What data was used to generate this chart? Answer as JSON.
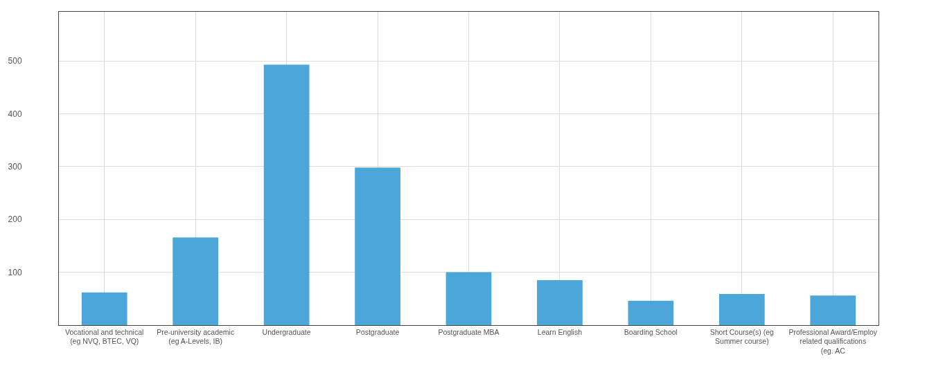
{
  "chart_data": {
    "type": "bar",
    "categories": [
      "Vocational and technical (eg NVQ, BTEC, VQ)",
      "Pre-university academic (eg A-Levels, IB)",
      "Undergraduate",
      "Postgraduate",
      "Postgraduate MBA",
      "Learn English",
      "Boarding School",
      "Short Course(s) (eg Summer course)",
      "Professional Award/Employ related qualifications (eg. AC"
    ],
    "values": [
      62,
      166,
      493,
      298,
      100,
      85,
      46,
      59,
      56
    ],
    "color": "#4ba6d9",
    "ylim": [
      0,
      593
    ],
    "yticks": [
      100,
      200,
      300,
      400,
      500
    ],
    "grid": true
  }
}
